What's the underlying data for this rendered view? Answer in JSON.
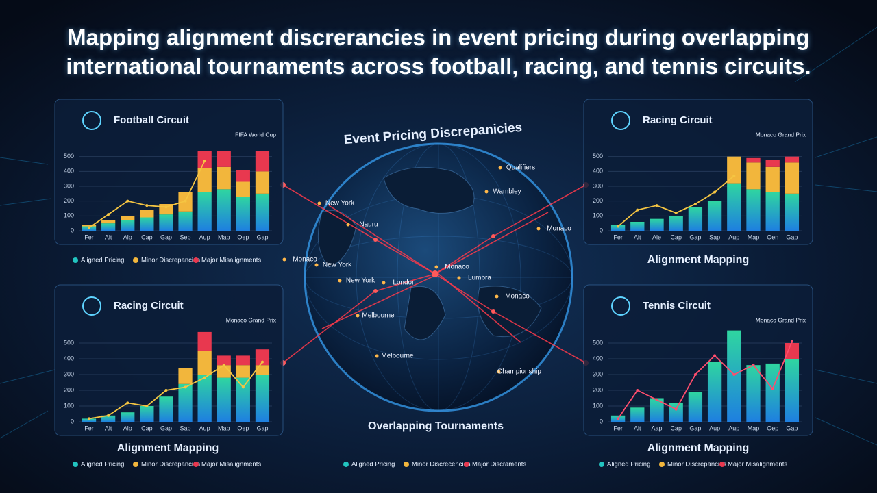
{
  "title": "Mapping alignment discrerancies in event pricing during overlapping international tournaments across football, racing, and tennis circuits.",
  "globe": {
    "title": "Event Pricing Discrepanicies",
    "caption": "Overlapping Tournaments",
    "cities": [
      "Qualifiers",
      "Wambley",
      "Monaco",
      "New York",
      "Nauru",
      "Monaco",
      "New York",
      "New York",
      "London",
      "Monaco",
      "Lumbra",
      "Monaco",
      "Melbourne",
      "Melbourne",
      "Championship"
    ],
    "legend": [
      "Aligned Pricing",
      "Minor Discrecencies",
      "Major Discraments"
    ]
  },
  "chart_data": [
    {
      "type": "bar",
      "panel_title": "Football Circuit",
      "annotation": "FIFA World Cup",
      "legend": true,
      "categories": [
        "Fer",
        "Alt",
        "Alp",
        "Cap",
        "Gap",
        "Sep",
        "Aup",
        "Map",
        "Oep",
        "Gap"
      ],
      "series": [
        {
          "name": "Aligned Pricing",
          "color": "#22c4c0",
          "values": [
            30,
            50,
            70,
            90,
            110,
            130,
            260,
            280,
            230,
            250
          ]
        },
        {
          "name": "Minor Discrepancies",
          "color": "#f2b63c",
          "values": [
            10,
            20,
            30,
            50,
            70,
            130,
            160,
            150,
            100,
            150
          ]
        },
        {
          "name": "Major Misalignments",
          "color": "#e8384f",
          "values": [
            0,
            0,
            0,
            0,
            0,
            0,
            120,
            110,
            80,
            140
          ]
        }
      ],
      "trend": {
        "color": "#f5c542",
        "values": [
          20,
          110,
          200,
          170,
          160,
          200,
          470,
          null,
          null,
          null
        ]
      },
      "ylim": [
        0,
        600
      ],
      "yticks": [
        0,
        100,
        200,
        300,
        400,
        500
      ]
    },
    {
      "type": "bar",
      "panel_title": "Racing Circuit",
      "annotation": "Monaco Grand Prix",
      "caption": "Alignment Mapping",
      "legend": false,
      "categories": [
        "Fer",
        "Alt",
        "Ale",
        "Cap",
        "Gap",
        "Sap",
        "Aup",
        "Map",
        "Oen",
        "Gap"
      ],
      "series": [
        {
          "name": "Aligned Pricing",
          "color": "#22c4c0",
          "values": [
            40,
            60,
            80,
            100,
            160,
            200,
            320,
            280,
            260,
            250
          ]
        },
        {
          "name": "Minor Discrepancies",
          "color": "#f2b63c",
          "values": [
            0,
            0,
            0,
            0,
            0,
            0,
            180,
            180,
            170,
            210
          ]
        },
        {
          "name": "Major Misalignments",
          "color": "#e8384f",
          "values": [
            0,
            0,
            0,
            0,
            0,
            0,
            0,
            30,
            50,
            40
          ]
        }
      ],
      "trend": {
        "color": "#f5c542",
        "values": [
          30,
          140,
          170,
          120,
          180,
          260,
          370,
          null,
          null,
          null
        ]
      },
      "ylim": [
        0,
        600
      ],
      "yticks": [
        0,
        100,
        200,
        300,
        400,
        500
      ]
    },
    {
      "type": "bar",
      "panel_title": "Racing Circuit",
      "annotation": "Monaco Grand Prix",
      "caption": "Alignment Mapping",
      "legend": true,
      "categories": [
        "Fer",
        "Alt",
        "Alp",
        "Cap",
        "Gap",
        "Sap",
        "Aup",
        "Map",
        "Oep",
        "Gap"
      ],
      "series": [
        {
          "name": "Aligned Pricing",
          "color": "#22c4c0",
          "values": [
            20,
            40,
            60,
            100,
            160,
            240,
            300,
            280,
            280,
            300
          ]
        },
        {
          "name": "Minor Discrepancies",
          "color": "#f2b63c",
          "values": [
            0,
            0,
            0,
            0,
            0,
            100,
            150,
            80,
            80,
            60
          ]
        },
        {
          "name": "Major Misalignments",
          "color": "#e8384f",
          "values": [
            0,
            0,
            0,
            0,
            0,
            0,
            120,
            60,
            60,
            100
          ]
        }
      ],
      "trend": {
        "color": "#f5c542",
        "values": [
          20,
          40,
          120,
          100,
          200,
          220,
          280,
          360,
          220,
          380
        ]
      },
      "ylim": [
        0,
        600
      ],
      "yticks": [
        0,
        100,
        200,
        300,
        400,
        500
      ]
    },
    {
      "type": "bar",
      "panel_title": "Tennis Circuit",
      "annotation": "Monaco Grand Prix",
      "caption": "Alignment Mapping",
      "legend": true,
      "categories": [
        "Fer",
        "Alt",
        "Aap",
        "Cap",
        "Gap",
        "Aup",
        "Aup",
        "Map",
        "Oep",
        "Gap"
      ],
      "series": [
        {
          "name": "Aligned Pricing",
          "color": "#22c4c0",
          "values": [
            40,
            90,
            150,
            120,
            190,
            380,
            580,
            360,
            370,
            400
          ]
        },
        {
          "name": "Minor Discrepancies",
          "color": "#f2b63c",
          "values": [
            0,
            0,
            0,
            0,
            0,
            0,
            0,
            0,
            0,
            0
          ]
        },
        {
          "name": "Major Misalignments",
          "color": "#e8384f",
          "values": [
            0,
            0,
            0,
            0,
            0,
            0,
            0,
            0,
            0,
            100
          ]
        }
      ],
      "trend": {
        "color": "#ff4d6d",
        "values": [
          20,
          200,
          140,
          80,
          300,
          420,
          300,
          360,
          210,
          510
        ]
      },
      "ylim": [
        0,
        600
      ],
      "yticks": [
        0,
        100,
        200,
        300,
        400,
        500
      ]
    }
  ]
}
